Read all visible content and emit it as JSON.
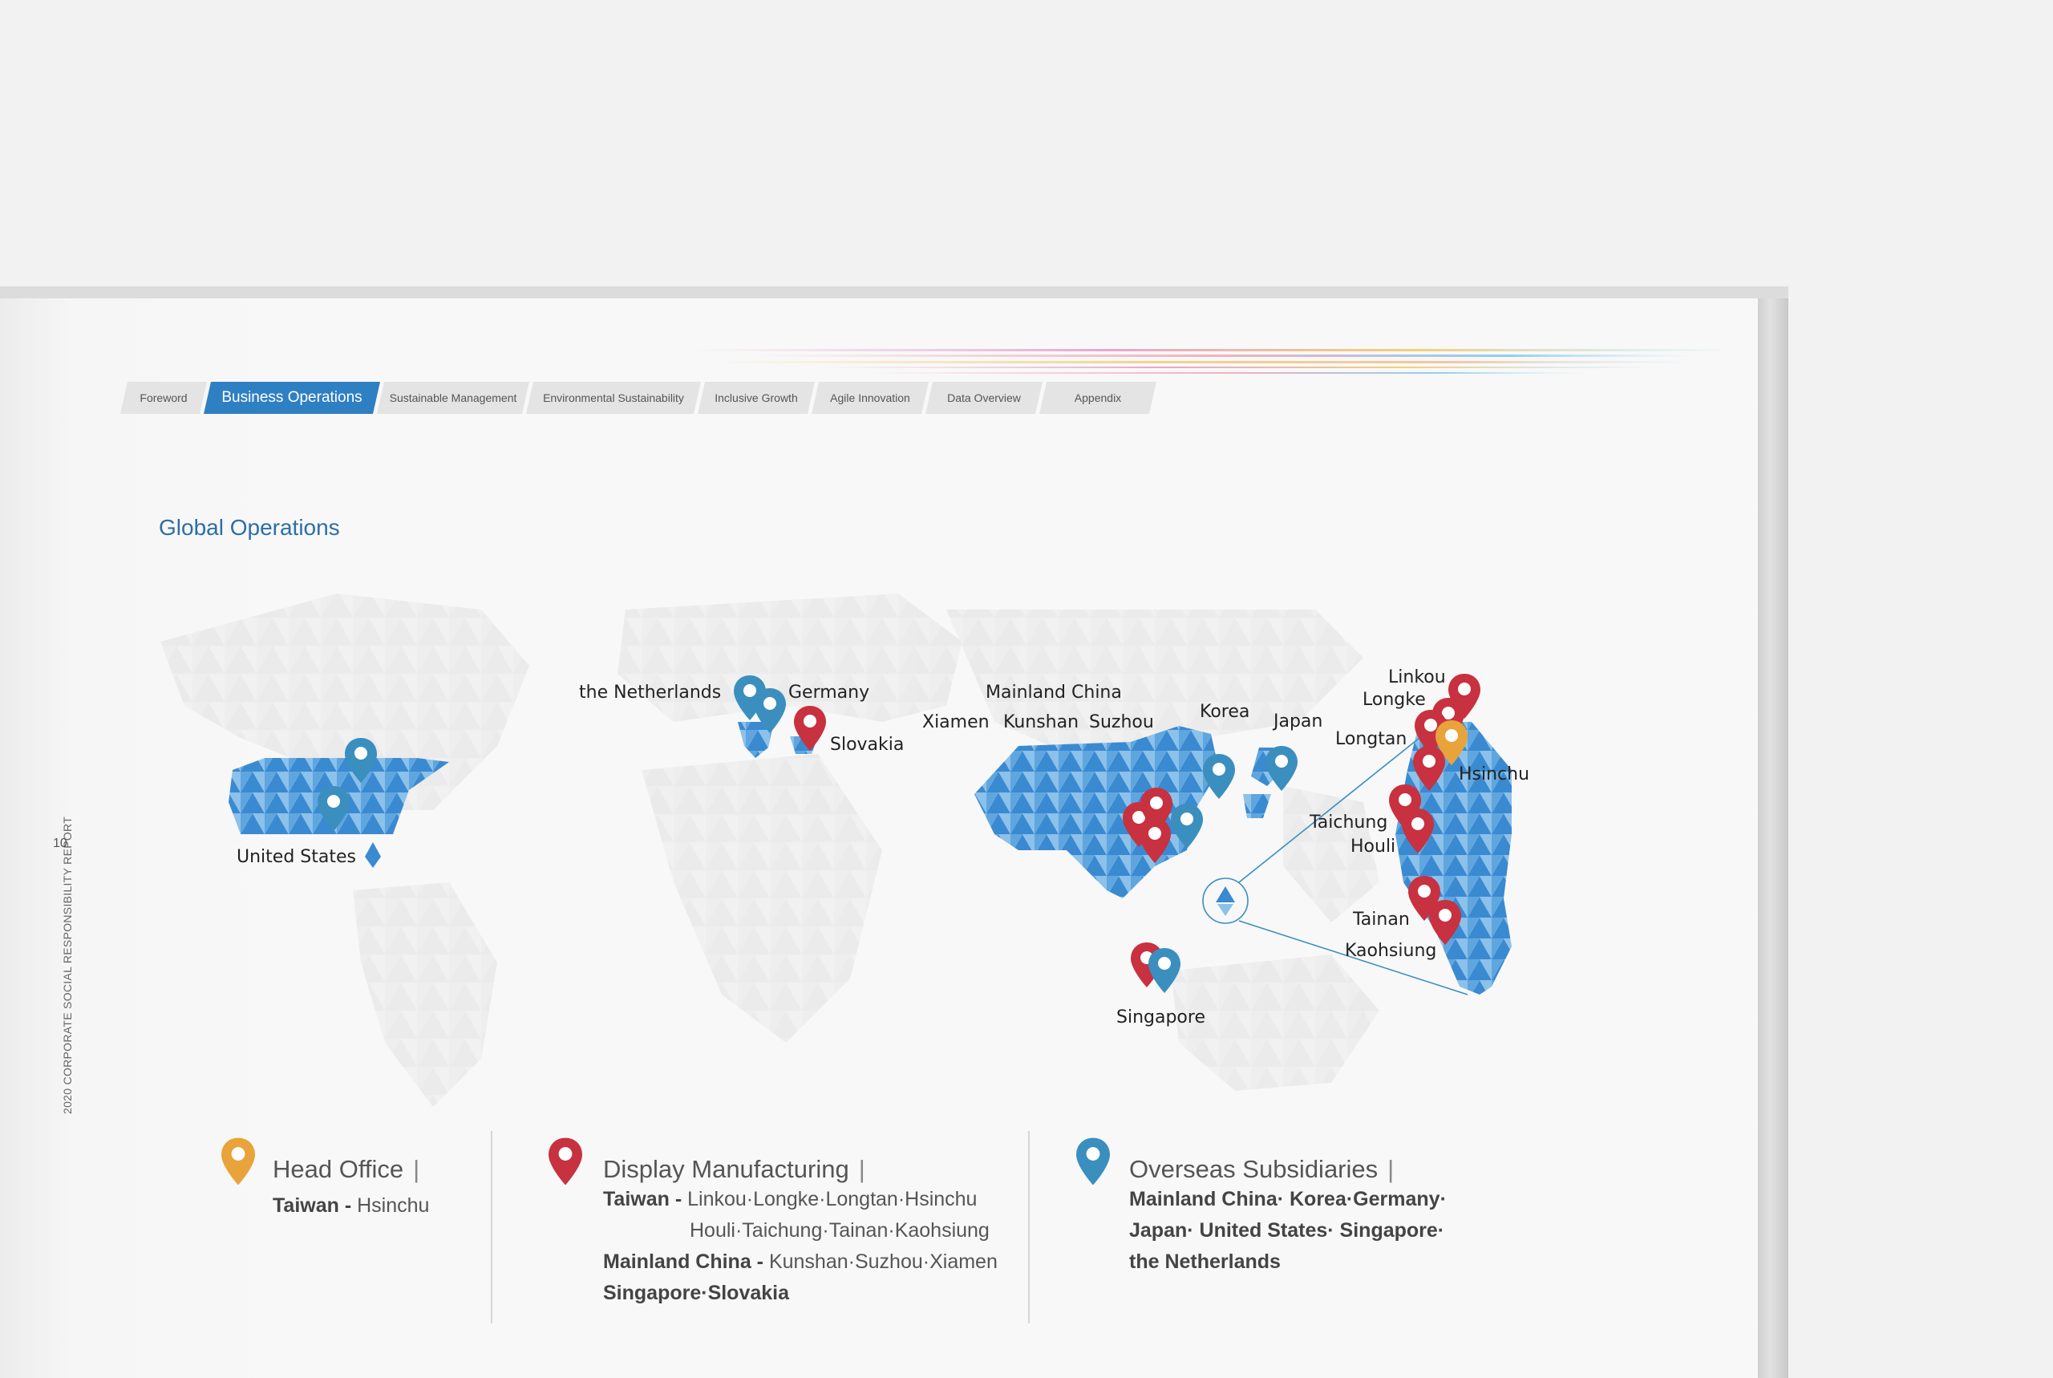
{
  "header": {
    "tabs": [
      {
        "label": "Foreword",
        "active": false
      },
      {
        "label": "Business Operations",
        "active": true
      },
      {
        "label": "Sustainable Management",
        "active": false
      },
      {
        "label": "Environmental Sustainability",
        "active": false
      },
      {
        "label": "Inclusive Growth",
        "active": false
      },
      {
        "label": "Agile Innovation",
        "active": false
      },
      {
        "label": "Data Overview",
        "active": false
      },
      {
        "label": "Appendix",
        "active": false
      }
    ]
  },
  "sidebar": {
    "report_title": "2020 CORPORATE SOCIAL RESPONSIBILITY REPORT",
    "page_number": "10"
  },
  "section": {
    "title": "Global Operations"
  },
  "map": {
    "labels": {
      "united_states": "United States",
      "netherlands": "the Netherlands",
      "germany": "Germany",
      "slovakia": "Slovakia",
      "mainland_china": "Mainland China",
      "xiamen": "Xiamen",
      "kunshan": "Kunshan",
      "suzhou": "Suzhou",
      "korea": "Korea",
      "japan": "Japan",
      "singapore": "Singapore",
      "linkou": "Linkou",
      "longke": "Longke",
      "longtan": "Longtan",
      "hsinchu": "Hsinchu",
      "taichung": "Taichung",
      "houli": "Houli",
      "tainan": "Tainan",
      "kaohsiung": "Kaohsiung"
    }
  },
  "legend": {
    "head_office": {
      "title": "Head Office",
      "line1_bold": "Taiwan - ",
      "line1_rest": "Hsinchu"
    },
    "display_manufacturing": {
      "title": "Display Manufacturing",
      "line1_bold": "Taiwan - ",
      "line1_rest": "Linkou·Longke·Longtan·Hsinchu",
      "line2": "Houli·Taichung·Tainan·Kaohsiung",
      "line3_bold": "Mainland China - ",
      "line3_rest": "Kunshan·Suzhou·Xiamen",
      "line4_bold": "Singapore·Slovakia"
    },
    "overseas_subsidiaries": {
      "title": "Overseas Subsidiaries",
      "line1": "Mainland China· Korea·Germany·",
      "line2": "Japan· United States· Singapore·",
      "line3": "the Netherlands"
    }
  },
  "colors": {
    "pin_head_office": "#e8a33a",
    "pin_manufacturing": "#c8313f",
    "pin_subsidiary": "#3a8fbf",
    "accent": "#2c6ea8",
    "tab_active": "#2f7fc3"
  }
}
